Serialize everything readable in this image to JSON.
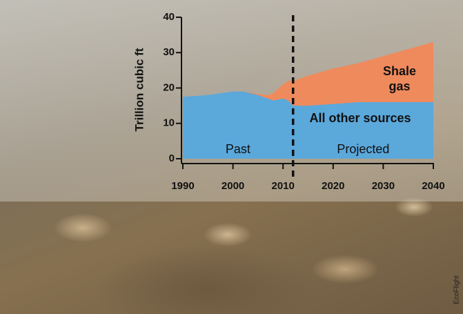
{
  "chart_data": {
    "type": "stacked-area",
    "y_label": "Trillion cubic ft",
    "x": [
      1990,
      1995,
      2000,
      2002,
      2005,
      2007,
      2008,
      2010,
      2011,
      2012,
      2015,
      2020,
      2025,
      2030,
      2035,
      2040
    ],
    "series": [
      {
        "name": "All other sources",
        "color": "#5ba8db",
        "values": [
          17.5,
          18,
          19,
          19,
          18,
          17,
          16.5,
          17,
          16.5,
          15,
          15,
          15.5,
          16,
          16,
          16,
          16
        ]
      },
      {
        "name": "Shale gas",
        "color": "#ef8a5c",
        "values": [
          0,
          0,
          0,
          0,
          0.3,
          1,
          2,
          4,
          5.5,
          7,
          8.5,
          10,
          11,
          13,
          15,
          17
        ]
      }
    ],
    "xlim": [
      1990,
      2040
    ],
    "xticks": [
      1990,
      2000,
      2010,
      2020,
      2030,
      2040
    ],
    "ylim": [
      0,
      40
    ],
    "yticks": [
      0,
      10,
      20,
      30,
      40
    ],
    "projection_start": 2012,
    "annotations": [
      "Past",
      "Projected"
    ],
    "credit": "EcoFlight"
  }
}
